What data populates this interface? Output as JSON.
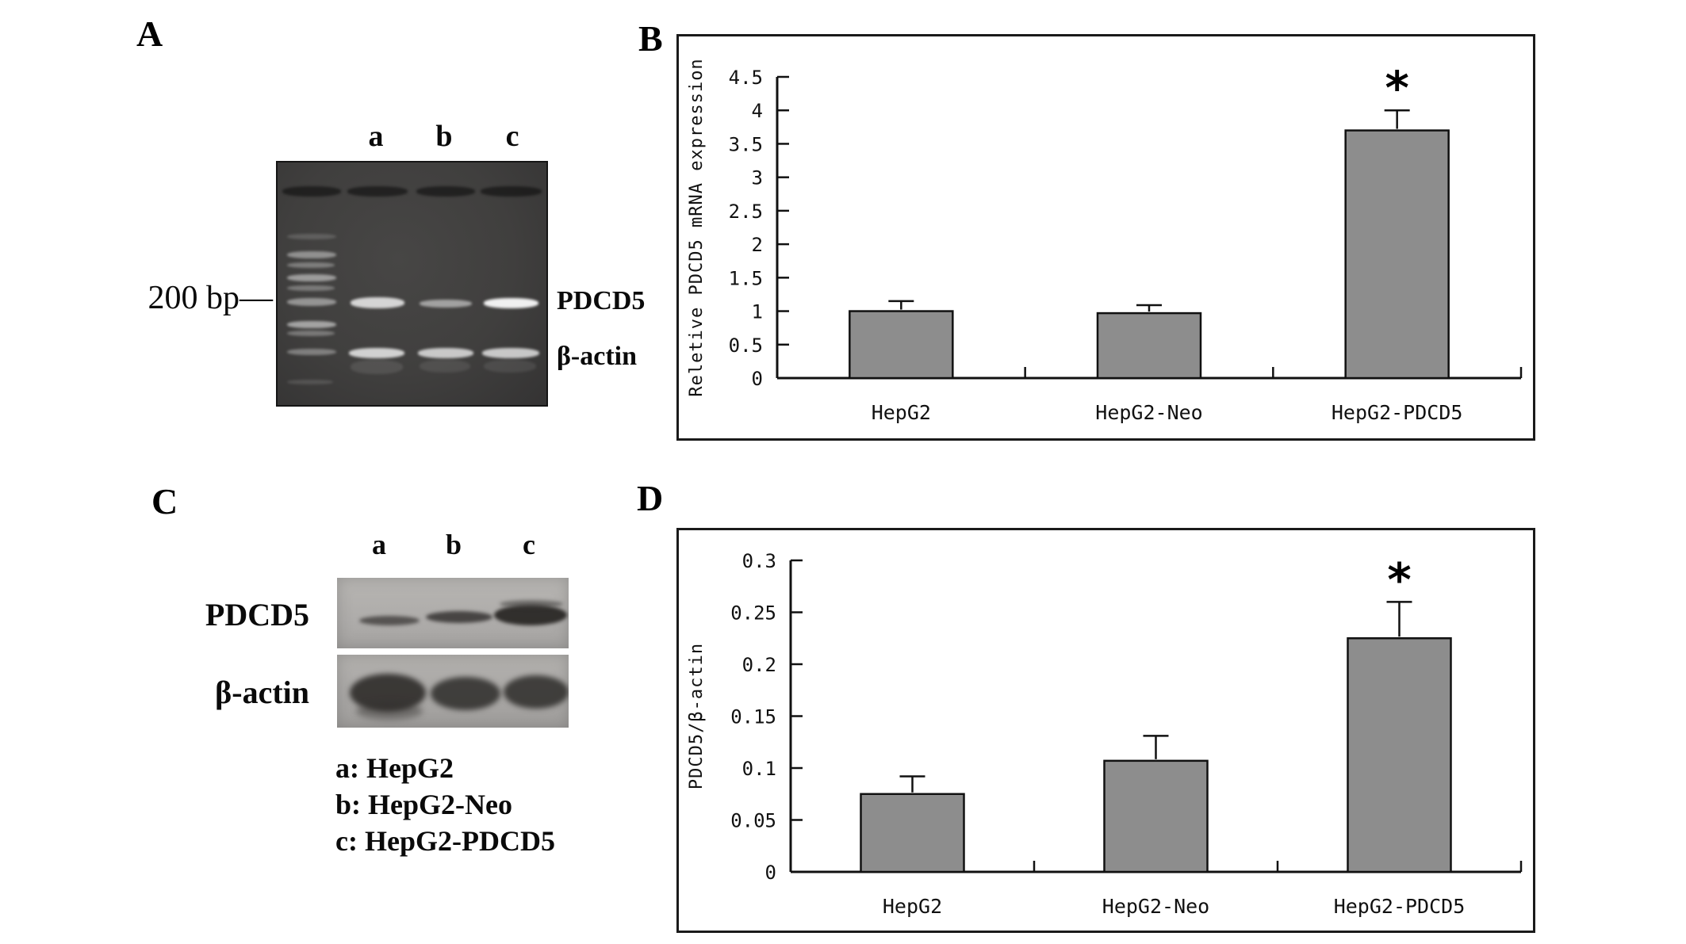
{
  "panels": {
    "a": {
      "label": "A",
      "marker_label": "200 bp—",
      "lane_labels": [
        "a",
        "b",
        "c"
      ],
      "row_labels": [
        "PDCD5",
        "β-actin"
      ]
    },
    "b": {
      "label": "B"
    },
    "c": {
      "label": "C",
      "lane_labels": [
        "a",
        "b",
        "c"
      ],
      "row_labels": [
        "PDCD5",
        "β-actin"
      ],
      "legend_lines": [
        "a: HepG2",
        "b: HepG2-Neo",
        "c: HepG2-PDCD5"
      ]
    },
    "d": {
      "label": "D"
    }
  },
  "chart_data": [
    {
      "panel": "B",
      "type": "bar",
      "title": "",
      "categories": [
        "HepG2",
        "HepG2-Neo",
        "HepG2-PDCD5"
      ],
      "values": [
        1.0,
        0.97,
        3.7
      ],
      "errors_up": [
        0.15,
        0.12,
        0.3
      ],
      "significance": [
        "",
        "",
        "*"
      ],
      "ylabel": "Reletive PDCD5 mRNA expression",
      "xlabel": "",
      "ylim": [
        0,
        4.5
      ],
      "yticks": [
        "0",
        "0.5",
        "1",
        "1.5",
        "2",
        "2.5",
        "3",
        "3.5",
        "4",
        "4.5"
      ],
      "bar_color": "#8d8d8d",
      "grid": false,
      "legend_position": "none"
    },
    {
      "panel": "D",
      "type": "bar",
      "title": "",
      "categories": [
        "HepG2",
        "HepG2-Neo",
        "HepG2-PDCD5"
      ],
      "values": [
        0.075,
        0.107,
        0.225
      ],
      "errors_up": [
        0.017,
        0.024,
        0.035
      ],
      "significance": [
        "",
        "",
        "*"
      ],
      "ylabel": "PDCD5/β-actin",
      "xlabel": "",
      "ylim": [
        0,
        0.3
      ],
      "yticks": [
        "0",
        "0.05",
        "0.1",
        "0.15",
        "0.2",
        "0.25",
        "0.3"
      ],
      "bar_color": "#8d8d8d",
      "grid": false,
      "legend_position": "none"
    }
  ]
}
